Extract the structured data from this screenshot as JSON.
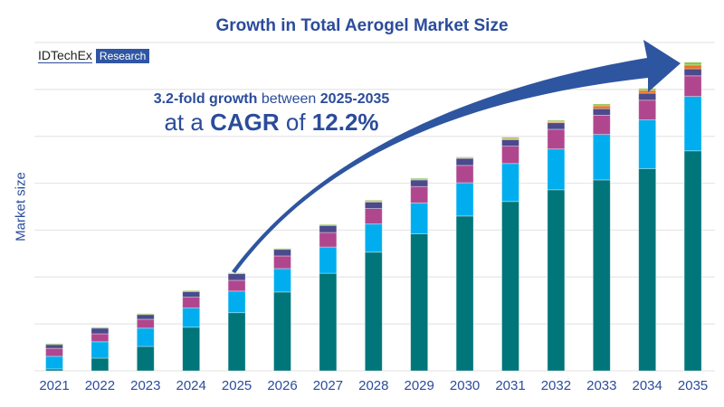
{
  "header": {
    "title": "Growth in Total Aerogel Market Size"
  },
  "logo": {
    "brand": "IDTechEx",
    "tag": "Research"
  },
  "annotation": {
    "line1_bold": "3.2-fold growth",
    "line1_mid": "between",
    "line1_years": "2025-2035",
    "line2_pre": "at a",
    "line2_bold": "CAGR",
    "line2_mid": "of",
    "line2_value": "12.2%"
  },
  "chart_data": {
    "type": "bar",
    "stacked": true,
    "title": "Growth in Total Aerogel Market Size",
    "xlabel": "",
    "ylabel": "Market size",
    "ylim": [
      0,
      7
    ],
    "y_ticks_labeled": false,
    "grid": true,
    "legend": "none",
    "categories": [
      "2021",
      "2022",
      "2023",
      "2024",
      "2025",
      "2026",
      "2027",
      "2028",
      "2029",
      "2030",
      "2031",
      "2032",
      "2033",
      "2034",
      "2035"
    ],
    "series": [
      {
        "color": "#00757A",
        "values": [
          0.04,
          0.27,
          0.52,
          0.93,
          1.24,
          1.68,
          2.08,
          2.53,
          2.92,
          3.3,
          3.61,
          3.86,
          4.07,
          4.31,
          4.69
        ]
      },
      {
        "color": "#00AEEF",
        "values": [
          0.27,
          0.35,
          0.39,
          0.41,
          0.46,
          0.5,
          0.56,
          0.6,
          0.66,
          0.71,
          0.81,
          0.87,
          0.97,
          1.04,
          1.16
        ]
      },
      {
        "color": "#B0478E",
        "values": [
          0.17,
          0.17,
          0.19,
          0.23,
          0.23,
          0.27,
          0.31,
          0.33,
          0.35,
          0.37,
          0.37,
          0.42,
          0.41,
          0.42,
          0.44
        ]
      },
      {
        "color": "#4A4A8C",
        "values": [
          0.08,
          0.12,
          0.1,
          0.12,
          0.14,
          0.14,
          0.15,
          0.14,
          0.14,
          0.15,
          0.14,
          0.14,
          0.14,
          0.15,
          0.15
        ]
      },
      {
        "color": "#E8731E",
        "values": [
          0,
          0,
          0,
          0,
          0,
          0,
          0,
          0.02,
          0.02,
          0.01,
          0.02,
          0.02,
          0.06,
          0.06,
          0.08
        ]
      },
      {
        "color": "#8BC34A",
        "values": [
          0.02,
          0.02,
          0.02,
          0.02,
          0.02,
          0.02,
          0.02,
          0.02,
          0.02,
          0.02,
          0.03,
          0.03,
          0.04,
          0.04,
          0.06
        ]
      }
    ],
    "annotation_arrow": {
      "from": "2025",
      "to": "2035",
      "color": "#2E55A0"
    }
  }
}
